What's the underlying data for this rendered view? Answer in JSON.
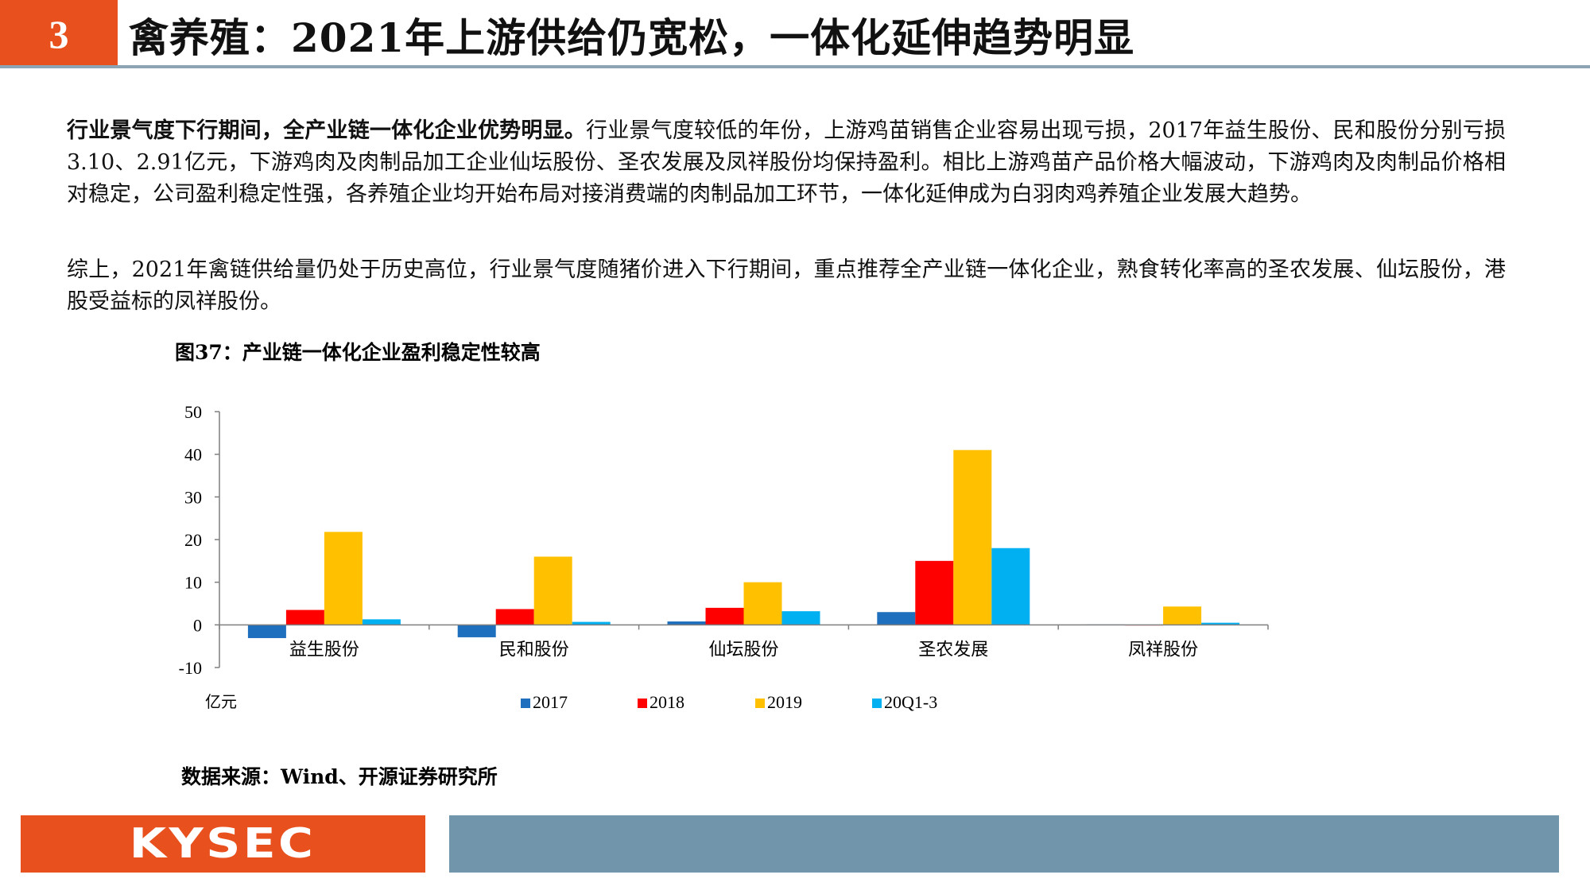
{
  "header": {
    "section_number": "3",
    "title": "禽养殖：2021年上游供给仍宽松，一体化延伸趋势明显"
  },
  "paragraphs": {
    "p1_lead": "行业景气度下行期间，全产业链一体化企业优势明显。",
    "p1_body": "行业景气度较低的年份，上游鸡苗销售企业容易出现亏损，2017年益生股份、民和股份分别亏损3.10、2.91亿元，下游鸡肉及肉制品加工企业仙坛股份、圣农发展及凤祥股份均保持盈利。相比上游鸡苗产品价格大幅波动，下游鸡肉及肉制品价格相对稳定，公司盈利稳定性强，各养殖企业均开始布局对接消费端的肉制品加工环节，一体化延伸成为白羽肉鸡养殖企业发展大趋势。",
    "p2": "综上，2021年禽链供给量仍处于历史高位，行业景气度随猪价进入下行期间，重点推荐全产业链一体化企业，熟食转化率高的圣农发展、仙坛股份，港股受益标的凤祥股份。"
  },
  "figure": {
    "title": "图37：产业链一体化企业盈利稳定性较高",
    "source": "数据来源：Wind、开源证券研究所"
  },
  "chart_data": {
    "type": "bar",
    "categories": [
      "益生股份",
      "民和股份",
      "仙坛股份",
      "圣农发展",
      "凤祥股份"
    ],
    "series": [
      {
        "name": "2017",
        "color": "#1f6fbf",
        "values": [
          -3.1,
          -2.91,
          0.8,
          3.0,
          0.1
        ]
      },
      {
        "name": "2018",
        "color": "#ff0000",
        "values": [
          3.5,
          3.7,
          4.0,
          15.0,
          0.0
        ]
      },
      {
        "name": "2019",
        "color": "#ffc000",
        "values": [
          21.8,
          16.0,
          10.0,
          41.0,
          4.3
        ]
      },
      {
        "name": "20Q1-3",
        "color": "#00b0f0",
        "values": [
          1.3,
          0.7,
          3.2,
          18.0,
          0.5
        ]
      }
    ],
    "y_ticks": [
      -10,
      0,
      10,
      20,
      30,
      40,
      50
    ],
    "ylim": [
      -10,
      50
    ],
    "ylabel": "亿元",
    "legend_position": "bottom"
  },
  "footer": {
    "logo_text": "KYSEC"
  }
}
